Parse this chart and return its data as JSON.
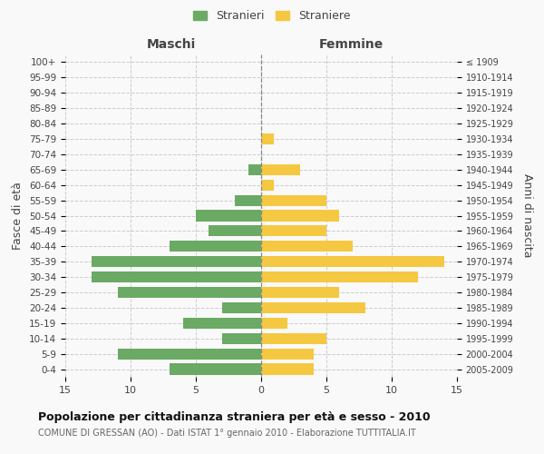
{
  "age_groups": [
    "0-4",
    "5-9",
    "10-14",
    "15-19",
    "20-24",
    "25-29",
    "30-34",
    "35-39",
    "40-44",
    "45-49",
    "50-54",
    "55-59",
    "60-64",
    "65-69",
    "70-74",
    "75-79",
    "80-84",
    "85-89",
    "90-94",
    "95-99",
    "100+"
  ],
  "birth_years": [
    "2005-2009",
    "2000-2004",
    "1995-1999",
    "1990-1994",
    "1985-1989",
    "1980-1984",
    "1975-1979",
    "1970-1974",
    "1965-1969",
    "1960-1964",
    "1955-1959",
    "1950-1954",
    "1945-1949",
    "1940-1944",
    "1935-1939",
    "1930-1934",
    "1925-1929",
    "1920-1924",
    "1915-1919",
    "1910-1914",
    "≤ 1909"
  ],
  "males": [
    7,
    11,
    3,
    6,
    3,
    11,
    13,
    13,
    7,
    4,
    5,
    2,
    0,
    1,
    0,
    0,
    0,
    0,
    0,
    0,
    0
  ],
  "females": [
    4,
    4,
    5,
    2,
    8,
    6,
    12,
    14,
    7,
    5,
    6,
    5,
    1,
    3,
    0,
    1,
    0,
    0,
    0,
    0,
    0
  ],
  "male_color": "#6aaa64",
  "female_color": "#f5c842",
  "background_color": "#f9f9f9",
  "grid_color": "#cccccc",
  "title": "Popolazione per cittadinanza straniera per età e sesso - 2010",
  "subtitle": "COMUNE DI GRESSAN (AO) - Dati ISTAT 1° gennaio 2010 - Elaborazione TUTTITALIA.IT",
  "ylabel_left": "Fasce di età",
  "ylabel_right": "Anni di nascita",
  "label_maschi": "Maschi",
  "label_femmine": "Femmine",
  "legend_male": "Stranieri",
  "legend_female": "Straniere",
  "xlim": 15,
  "figsize": [
    6.0,
    5.0
  ],
  "dpi": 100
}
